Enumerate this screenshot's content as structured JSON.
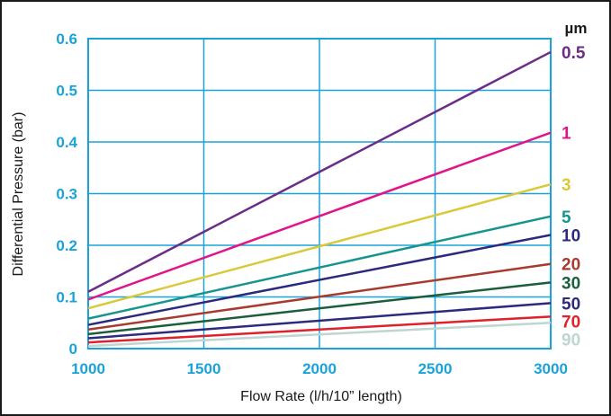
{
  "chart_data": {
    "type": "line",
    "xlabel": "Flow Rate (l/h/10” length)",
    "ylabel": "Differential Pressure (bar)",
    "xlim": [
      1000,
      3000
    ],
    "ylim": [
      0,
      0.6
    ],
    "x_ticks": [
      "1000",
      "1500",
      "2000",
      "2500",
      "3000"
    ],
    "y_ticks": [
      "0",
      "0.1",
      "0.2",
      "0.3",
      "0.4",
      "0.5",
      "0.6"
    ],
    "grid": true,
    "legend_title": "µm",
    "legend_placement": "right",
    "series": [
      {
        "name": "0.5",
        "color": "#6b2c8a",
        "x": [
          1000,
          3000
        ],
        "y": [
          0.11,
          0.574
        ]
      },
      {
        "name": "1",
        "color": "#e0158b",
        "x": [
          1000,
          3000
        ],
        "y": [
          0.095,
          0.418
        ]
      },
      {
        "name": "3",
        "color": "#d9c93a",
        "x": [
          1000,
          3000
        ],
        "y": [
          0.078,
          0.318
        ]
      },
      {
        "name": "5",
        "color": "#16958f",
        "x": [
          1000,
          3000
        ],
        "y": [
          0.058,
          0.256
        ]
      },
      {
        "name": "10",
        "color": "#2d2a7e",
        "x": [
          1000,
          3000
        ],
        "y": [
          0.046,
          0.22
        ]
      },
      {
        "name": "20",
        "color": "#a83a2e",
        "x": [
          1000,
          3000
        ],
        "y": [
          0.037,
          0.164
        ]
      },
      {
        "name": "30",
        "color": "#1b5e3b",
        "x": [
          1000,
          3000
        ],
        "y": [
          0.028,
          0.128
        ]
      },
      {
        "name": "50",
        "color": "#2d2a7e",
        "x": [
          1000,
          3000
        ],
        "y": [
          0.02,
          0.088
        ]
      },
      {
        "name": "70",
        "color": "#e0202a",
        "x": [
          1000,
          3000
        ],
        "y": [
          0.012,
          0.062
        ]
      },
      {
        "name": "90",
        "color": "#bcd6d2",
        "x": [
          1000,
          3000
        ],
        "y": [
          0.005,
          0.05
        ]
      }
    ],
    "colors": {
      "grid": "#1aa3d9",
      "ticks": "#1aa3d9",
      "text": "#1a1a1a"
    }
  }
}
